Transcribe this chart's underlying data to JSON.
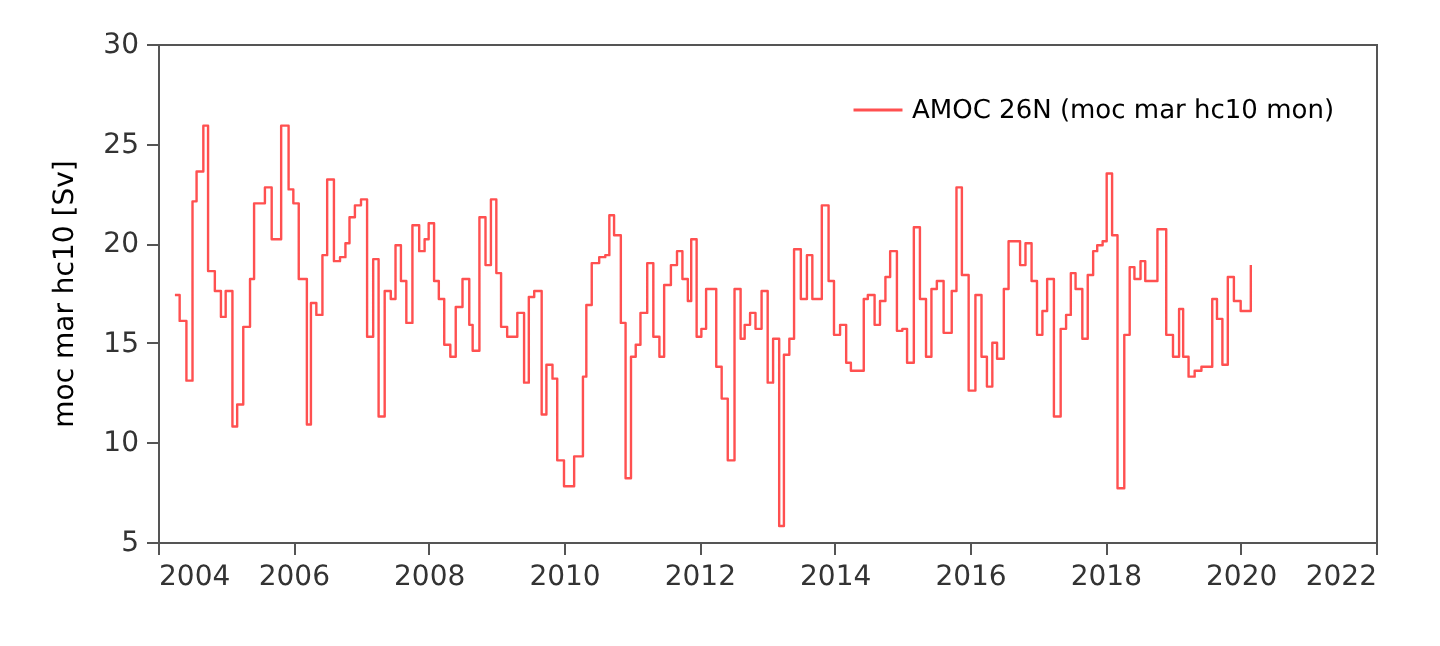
{
  "chart_data": {
    "type": "step",
    "ylabel": "moc mar hc10 [Sv]",
    "xlim": [
      2004,
      2022
    ],
    "xticks": [
      2004,
      2006,
      2008,
      2010,
      2012,
      2014,
      2016,
      2018,
      2020,
      2022
    ],
    "ylim": [
      5,
      30
    ],
    "yticks": [
      5,
      10,
      15,
      20,
      25,
      30
    ],
    "grid": false,
    "legend": "top right",
    "marker": "none",
    "line_style": "solid",
    "series": [
      {
        "name": "AMOC 26N (moc mar hc10 mon)",
        "color": "#ff5050",
        "x": [
          2004.25,
          2004.32,
          2004.42,
          2004.51,
          2004.57,
          2004.67,
          2004.74,
          2004.84,
          2004.93,
          2005.0,
          2005.1,
          2005.17,
          2005.26,
          2005.36,
          2005.42,
          2005.58,
          2005.68,
          2005.82,
          2005.93,
          2006.0,
          2006.08,
          2006.2,
          2006.26,
          2006.34,
          2006.43,
          2006.5,
          2006.6,
          2006.69,
          2006.77,
          2006.83,
          2006.91,
          2007.0,
          2007.09,
          2007.18,
          2007.26,
          2007.35,
          2007.44,
          2007.51,
          2007.59,
          2007.67,
          2007.76,
          2007.86,
          2007.94,
          2008.0,
          2008.08,
          2008.15,
          2008.23,
          2008.32,
          2008.4,
          2008.5,
          2008.6,
          2008.65,
          2008.75,
          2008.84,
          2008.92,
          2009.0,
          2009.07,
          2009.16,
          2009.31,
          2009.41,
          2009.48,
          2009.56,
          2009.67,
          2009.74,
          2009.83,
          2009.9,
          2010.0,
          2010.15,
          2010.28,
          2010.33,
          2010.41,
          2010.52,
          2010.61,
          2010.67,
          2010.74,
          2010.84,
          2010.91,
          2010.99,
          2011.06,
          2011.13,
          2011.23,
          2011.32,
          2011.41,
          2011.48,
          2011.58,
          2011.67,
          2011.75,
          2011.83,
          2011.88,
          2011.96,
          2012.03,
          2012.1,
          2012.25,
          2012.33,
          2012.42,
          2012.52,
          2012.61,
          2012.67,
          2012.75,
          2012.83,
          2012.92,
          2013.01,
          2013.09,
          2013.18,
          2013.25,
          2013.33,
          2013.4,
          2013.5,
          2013.59,
          2013.67,
          2013.81,
          2013.91,
          2013.99,
          2014.08,
          2014.17,
          2014.24,
          2014.43,
          2014.49,
          2014.59,
          2014.67,
          2014.75,
          2014.82,
          2014.92,
          2015.0,
          2015.07,
          2015.17,
          2015.26,
          2015.35,
          2015.43,
          2015.51,
          2015.61,
          2015.73,
          2015.8,
          2015.88,
          2015.98,
          2016.08,
          2016.17,
          2016.25,
          2016.33,
          2016.4,
          2016.5,
          2016.57,
          2016.74,
          2016.82,
          2016.91,
          2016.99,
          2017.07,
          2017.14,
          2017.24,
          2017.34,
          2017.42,
          2017.49,
          2017.56,
          2017.66,
          2017.74,
          2017.82,
          2017.88,
          2017.96,
          2018.02,
          2018.1,
          2018.18,
          2018.28,
          2018.36,
          2018.43,
          2018.52,
          2018.59,
          2018.77,
          2018.9,
          2019.0,
          2019.09,
          2019.15,
          2019.23,
          2019.32,
          2019.42,
          2019.58,
          2019.65,
          2019.73,
          2019.81,
          2019.9,
          2020.0,
          2020.15
        ],
        "values": [
          17.4,
          16.1,
          13.1,
          22.1,
          23.6,
          25.9,
          18.6,
          17.6,
          16.3,
          17.6,
          10.8,
          11.9,
          15.8,
          18.2,
          22.0,
          22.8,
          20.2,
          25.9,
          22.7,
          22.0,
          18.2,
          10.9,
          17.0,
          16.4,
          19.4,
          23.2,
          19.1,
          19.3,
          20.0,
          21.3,
          21.9,
          22.2,
          15.3,
          19.2,
          11.3,
          17.6,
          17.2,
          19.9,
          18.1,
          16.0,
          20.9,
          19.6,
          20.2,
          21.0,
          18.1,
          17.2,
          14.9,
          14.3,
          16.8,
          18.2,
          15.9,
          14.6,
          21.3,
          18.9,
          22.2,
          18.5,
          15.8,
          15.3,
          16.5,
          13.0,
          17.3,
          17.6,
          11.4,
          13.9,
          13.2,
          9.1,
          7.8,
          9.3,
          13.3,
          16.9,
          19.0,
          19.3,
          19.4,
          21.4,
          20.4,
          16.0,
          8.2,
          14.3,
          14.9,
          16.5,
          19.0,
          15.3,
          14.3,
          17.9,
          18.9,
          19.6,
          18.2,
          17.1,
          20.2,
          15.3,
          15.7,
          17.7,
          13.8,
          12.2,
          9.1,
          17.7,
          15.2,
          15.9,
          16.5,
          15.7,
          17.6,
          13.0,
          15.2,
          5.8,
          14.4,
          15.2,
          19.7,
          17.2,
          19.4,
          17.2,
          21.9,
          18.1,
          15.4,
          15.9,
          14.0,
          13.6,
          17.2,
          17.4,
          15.9,
          17.1,
          18.3,
          19.6,
          15.6,
          15.7,
          14.0,
          20.8,
          17.2,
          14.3,
          17.7,
          18.1,
          15.5,
          17.6,
          22.8,
          18.4,
          12.6,
          17.4,
          14.3,
          12.8,
          15.0,
          14.2,
          17.7,
          20.1,
          18.9,
          20.0,
          18.1,
          15.4,
          16.6,
          18.2,
          11.3,
          15.7,
          16.4,
          18.5,
          17.7,
          15.2,
          18.4,
          19.6,
          19.9,
          20.1,
          23.5,
          20.4,
          7.7,
          15.4,
          18.8,
          18.2,
          19.1,
          18.1,
          20.7,
          15.4,
          14.3,
          16.7,
          14.3,
          13.3,
          13.6,
          13.8,
          17.2,
          16.2,
          13.9,
          18.3,
          17.1,
          16.6,
          18.9
        ]
      }
    ]
  }
}
